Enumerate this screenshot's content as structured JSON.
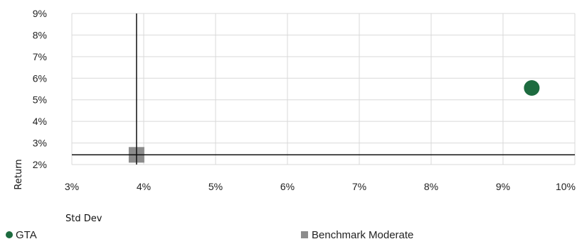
{
  "chart_data": {
    "type": "scatter",
    "title": "",
    "xlabel": "Std Dev",
    "ylabel": "Return",
    "xlim": [
      3,
      10
    ],
    "ylim": [
      2,
      9
    ],
    "xticks": [
      3,
      4,
      5,
      6,
      7,
      8,
      9,
      10
    ],
    "yticks": [
      2,
      3,
      4,
      5,
      6,
      7,
      8,
      9
    ],
    "xtick_labels": [
      "3%",
      "4%",
      "5%",
      "6%",
      "7%",
      "8%",
      "9%",
      "10%"
    ],
    "ytick_labels": [
      "2%",
      "3%",
      "4%",
      "5%",
      "6%",
      "7%",
      "8%",
      "9%"
    ],
    "grid": true,
    "legend_position": "bottom",
    "reference_lines": {
      "x": 3.9,
      "y": 2.45
    },
    "series": [
      {
        "name": "GTA",
        "x": [
          9.4
        ],
        "y": [
          5.55
        ],
        "color": "#1d6b3f",
        "marker": "circle"
      },
      {
        "name": "Benchmark Moderate",
        "x": [
          3.9
        ],
        "y": [
          2.45
        ],
        "color": "#8c8c8c",
        "marker": "square"
      }
    ]
  }
}
